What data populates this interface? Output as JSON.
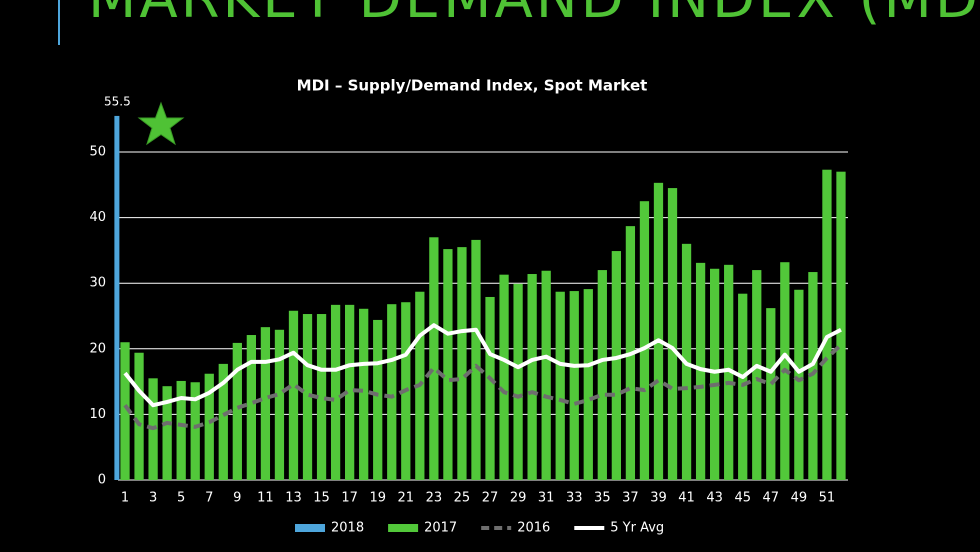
{
  "slide_title": "MARKET DEMAND INDEX (MDI)",
  "chart_data": {
    "type": "bar",
    "title": "MDI – Supply/Demand Index, Spot Market",
    "categories": [
      "1",
      null,
      "3",
      null,
      "5",
      null,
      "7",
      null,
      "9",
      null,
      "11",
      null,
      "13",
      null,
      "15",
      null,
      "17",
      null,
      "19",
      null,
      "21",
      null,
      "23",
      null,
      "25",
      null,
      "27",
      null,
      "29",
      null,
      "31",
      null,
      "33",
      null,
      "35",
      null,
      "37",
      null,
      "39",
      null,
      "41",
      null,
      "43",
      null,
      "45",
      null,
      "47",
      null,
      "49",
      null,
      "51",
      null
    ],
    "series": [
      {
        "name": "2018",
        "type": "bar",
        "color": "#4ea6dc",
        "values": [
          55.5,
          null,
          null,
          null,
          null,
          null,
          null,
          null,
          null,
          null,
          null,
          null,
          null,
          null,
          null,
          null,
          null,
          null,
          null,
          null,
          null,
          null,
          null,
          null,
          null,
          null,
          null,
          null,
          null,
          null,
          null,
          null,
          null,
          null,
          null,
          null,
          null,
          null,
          null,
          null,
          null,
          null,
          null,
          null,
          null,
          null,
          null,
          null,
          null,
          null,
          null,
          null
        ]
      },
      {
        "name": "2017",
        "type": "bar",
        "color": "#52c83a",
        "values": [
          21.0,
          19.4,
          15.5,
          14.3,
          15.1,
          14.9,
          16.2,
          17.7,
          20.9,
          22.1,
          23.3,
          22.9,
          25.8,
          25.3,
          25.3,
          26.7,
          26.7,
          26.1,
          24.4,
          26.8,
          27.1,
          28.7,
          37.0,
          35.2,
          35.5,
          36.6,
          27.9,
          31.3,
          29.9,
          31.4,
          31.9,
          28.7,
          28.8,
          29.1,
          32.0,
          34.9,
          38.7,
          42.5,
          45.3,
          44.5,
          36.0,
          33.1,
          32.2,
          32.8,
          28.4,
          32.0,
          26.2,
          33.2,
          29.0,
          31.7,
          47.3,
          47.0
        ]
      },
      {
        "name": "2016",
        "type": "line",
        "dashed": true,
        "color": "#6e6e6e",
        "values": [
          11.4,
          8.5,
          7.9,
          8.7,
          8.4,
          8.1,
          8.8,
          9.9,
          11.0,
          11.7,
          12.5,
          13.1,
          14.6,
          13.0,
          12.5,
          12.2,
          13.7,
          13.6,
          13.0,
          12.7,
          13.7,
          14.5,
          17.1,
          15.2,
          15.4,
          17.4,
          15.5,
          13.4,
          12.7,
          13.4,
          12.7,
          12.2,
          11.6,
          12.2,
          13.0,
          13.0,
          14.0,
          13.7,
          15.2,
          13.9,
          14.0,
          14.2,
          14.5,
          14.8,
          14.5,
          15.4,
          14.6,
          16.8,
          15.2,
          16.2,
          18.6,
          20.6
        ]
      },
      {
        "name": "5 Yr Avg",
        "type": "line",
        "color": "#ffffff",
        "values": [
          16.3,
          13.6,
          11.4,
          11.9,
          12.5,
          12.3,
          13.3,
          14.8,
          16.8,
          18.0,
          18.0,
          18.4,
          19.4,
          17.5,
          16.8,
          16.8,
          17.5,
          17.7,
          17.8,
          18.3,
          19.1,
          22.0,
          23.6,
          22.3,
          22.7,
          22.9,
          19.2,
          18.3,
          17.2,
          18.3,
          18.8,
          17.7,
          17.4,
          17.5,
          18.3,
          18.6,
          19.2,
          20.1,
          21.3,
          20.1,
          17.7,
          16.9,
          16.5,
          16.8,
          15.7,
          17.4,
          16.5,
          19.1,
          16.5,
          17.7,
          21.8,
          22.9
        ]
      }
    ],
    "ylim": [
      0,
      56
    ],
    "yticks": [
      0,
      10,
      20,
      30,
      40,
      50
    ],
    "grid": true,
    "legend": "bottom"
  }
}
